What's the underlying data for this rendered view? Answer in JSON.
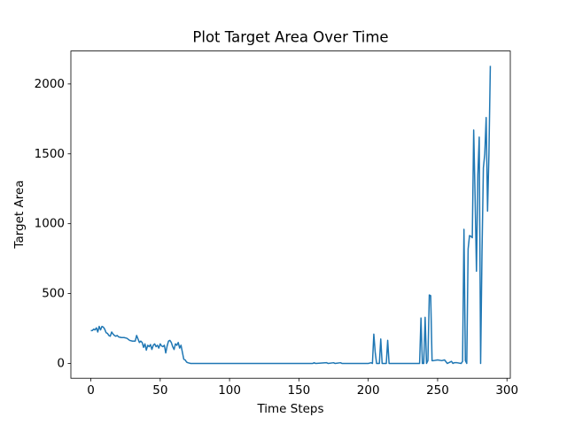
{
  "chart_data": {
    "type": "line",
    "title": "Plot Target Area Over Time",
    "x_label": "Time Steps",
    "y_label": "Target Area",
    "x": [
      0,
      1,
      2,
      3,
      4,
      5,
      6,
      7,
      8,
      9,
      10,
      11,
      12,
      13,
      14,
      15,
      16,
      17,
      18,
      19,
      20,
      22,
      24,
      26,
      28,
      30,
      32,
      33,
      34,
      35,
      36,
      37,
      38,
      39,
      40,
      41,
      42,
      43,
      44,
      45,
      46,
      47,
      48,
      49,
      50,
      51,
      52,
      53,
      54,
      55,
      56,
      57,
      58,
      59,
      60,
      61,
      62,
      63,
      64,
      65,
      66,
      67,
      68,
      69,
      70,
      72,
      160,
      161,
      162,
      170,
      171,
      175,
      176,
      180,
      181,
      200,
      202,
      203,
      204,
      205,
      206,
      208,
      209,
      210,
      213,
      214,
      215,
      237,
      238,
      239,
      240,
      241,
      242,
      243,
      244,
      245,
      246,
      247,
      250,
      253,
      255,
      257,
      259,
      260,
      261,
      262,
      264,
      267,
      268,
      269,
      270,
      271,
      272,
      273,
      274,
      275,
      276,
      277,
      278,
      279,
      280,
      281,
      282,
      283,
      284,
      285,
      286,
      287,
      288
    ],
    "series": [
      {
        "name": "Target Area",
        "color": "#1f77b4",
        "values": [
          235,
          235,
          245,
          240,
          255,
          225,
          265,
          240,
          265,
          260,
          245,
          220,
          215,
          200,
          195,
          225,
          210,
          200,
          195,
          200,
          190,
          185,
          185,
          180,
          165,
          160,
          160,
          200,
          175,
          150,
          160,
          150,
          115,
          140,
          95,
          130,
          120,
          135,
          100,
          130,
          140,
          120,
          130,
          110,
          140,
          125,
          120,
          130,
          75,
          125,
          160,
          165,
          150,
          120,
          100,
          140,
          130,
          150,
          110,
          130,
          80,
          30,
          25,
          10,
          5,
          0,
          0,
          5,
          0,
          5,
          0,
          5,
          0,
          5,
          0,
          0,
          5,
          0,
          210,
          80,
          0,
          0,
          175,
          0,
          0,
          165,
          0,
          0,
          325,
          0,
          0,
          330,
          0,
          20,
          490,
          485,
          20,
          20,
          25,
          20,
          25,
          0,
          10,
          15,
          0,
          5,
          5,
          0,
          15,
          960,
          20,
          0,
          820,
          915,
          910,
          900,
          1670,
          1200,
          660,
          1350,
          1620,
          0,
          800,
          1400,
          1500,
          1760,
          1090,
          1500,
          2130
        ]
      }
    ],
    "xlim": [
      -14.4,
      302.4
    ],
    "ylim": [
      -106,
      2236
    ],
    "xticks": [
      0,
      50,
      100,
      150,
      200,
      250,
      300
    ],
    "yticks": [
      0,
      500,
      1000,
      1500,
      2000
    ]
  }
}
